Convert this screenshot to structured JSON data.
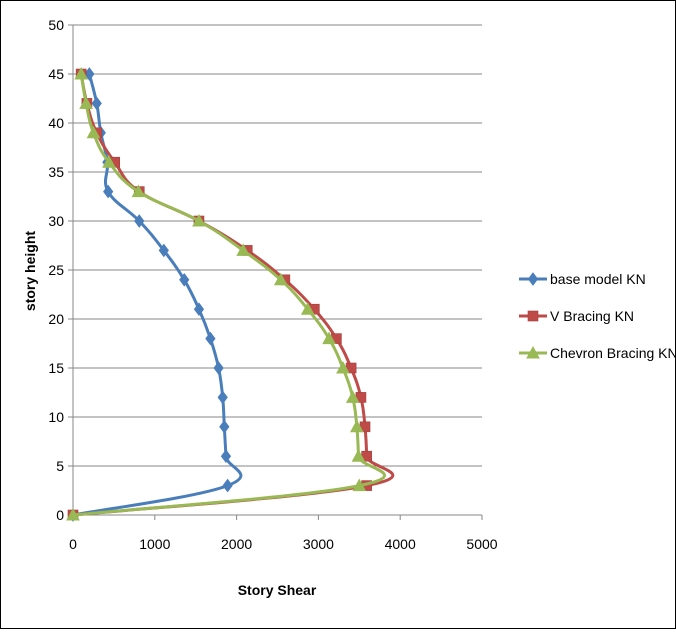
{
  "chart_data": {
    "type": "line",
    "title": "",
    "xlabel": "Story Shear",
    "ylabel": "story height",
    "xlim": [
      0,
      5000
    ],
    "ylim": [
      0,
      50
    ],
    "xticks": [
      0,
      1000,
      2000,
      3000,
      4000,
      5000
    ],
    "yticks": [
      0,
      5,
      10,
      15,
      20,
      25,
      30,
      35,
      40,
      45,
      50
    ],
    "grid": "horizontal",
    "legend_position": "right",
    "series": [
      {
        "name": "base model KN",
        "color": "#4a7ebb",
        "marker": "diamond",
        "points": [
          [
            0,
            0
          ],
          [
            1890,
            3
          ],
          [
            1870,
            6
          ],
          [
            1850,
            9
          ],
          [
            1830,
            12
          ],
          [
            1780,
            15
          ],
          [
            1680,
            18
          ],
          [
            1540,
            21
          ],
          [
            1360,
            24
          ],
          [
            1110,
            27
          ],
          [
            810,
            30
          ],
          [
            430,
            33
          ],
          [
            420,
            36
          ],
          [
            340,
            39
          ],
          [
            290,
            42
          ],
          [
            200,
            45
          ]
        ]
      },
      {
        "name": "V Bracing KN",
        "color": "#be4b48",
        "marker": "square",
        "points": [
          [
            0,
            0
          ],
          [
            3590,
            3
          ],
          [
            3590,
            6
          ],
          [
            3570,
            9
          ],
          [
            3520,
            12
          ],
          [
            3400,
            15
          ],
          [
            3220,
            18
          ],
          [
            2950,
            21
          ],
          [
            2590,
            24
          ],
          [
            2130,
            27
          ],
          [
            1540,
            30
          ],
          [
            810,
            33
          ],
          [
            510,
            36
          ],
          [
            290,
            39
          ],
          [
            170,
            42
          ],
          [
            100,
            45
          ]
        ]
      },
      {
        "name": "Chevron Bracing KN",
        "color": "#98b954",
        "marker": "triangle",
        "points": [
          [
            0,
            0
          ],
          [
            3500,
            3
          ],
          [
            3490,
            6
          ],
          [
            3470,
            9
          ],
          [
            3420,
            12
          ],
          [
            3300,
            15
          ],
          [
            3130,
            18
          ],
          [
            2870,
            21
          ],
          [
            2540,
            24
          ],
          [
            2080,
            27
          ],
          [
            1540,
            30
          ],
          [
            800,
            33
          ],
          [
            440,
            36
          ],
          [
            250,
            39
          ],
          [
            160,
            42
          ],
          [
            100,
            45
          ]
        ]
      }
    ]
  }
}
